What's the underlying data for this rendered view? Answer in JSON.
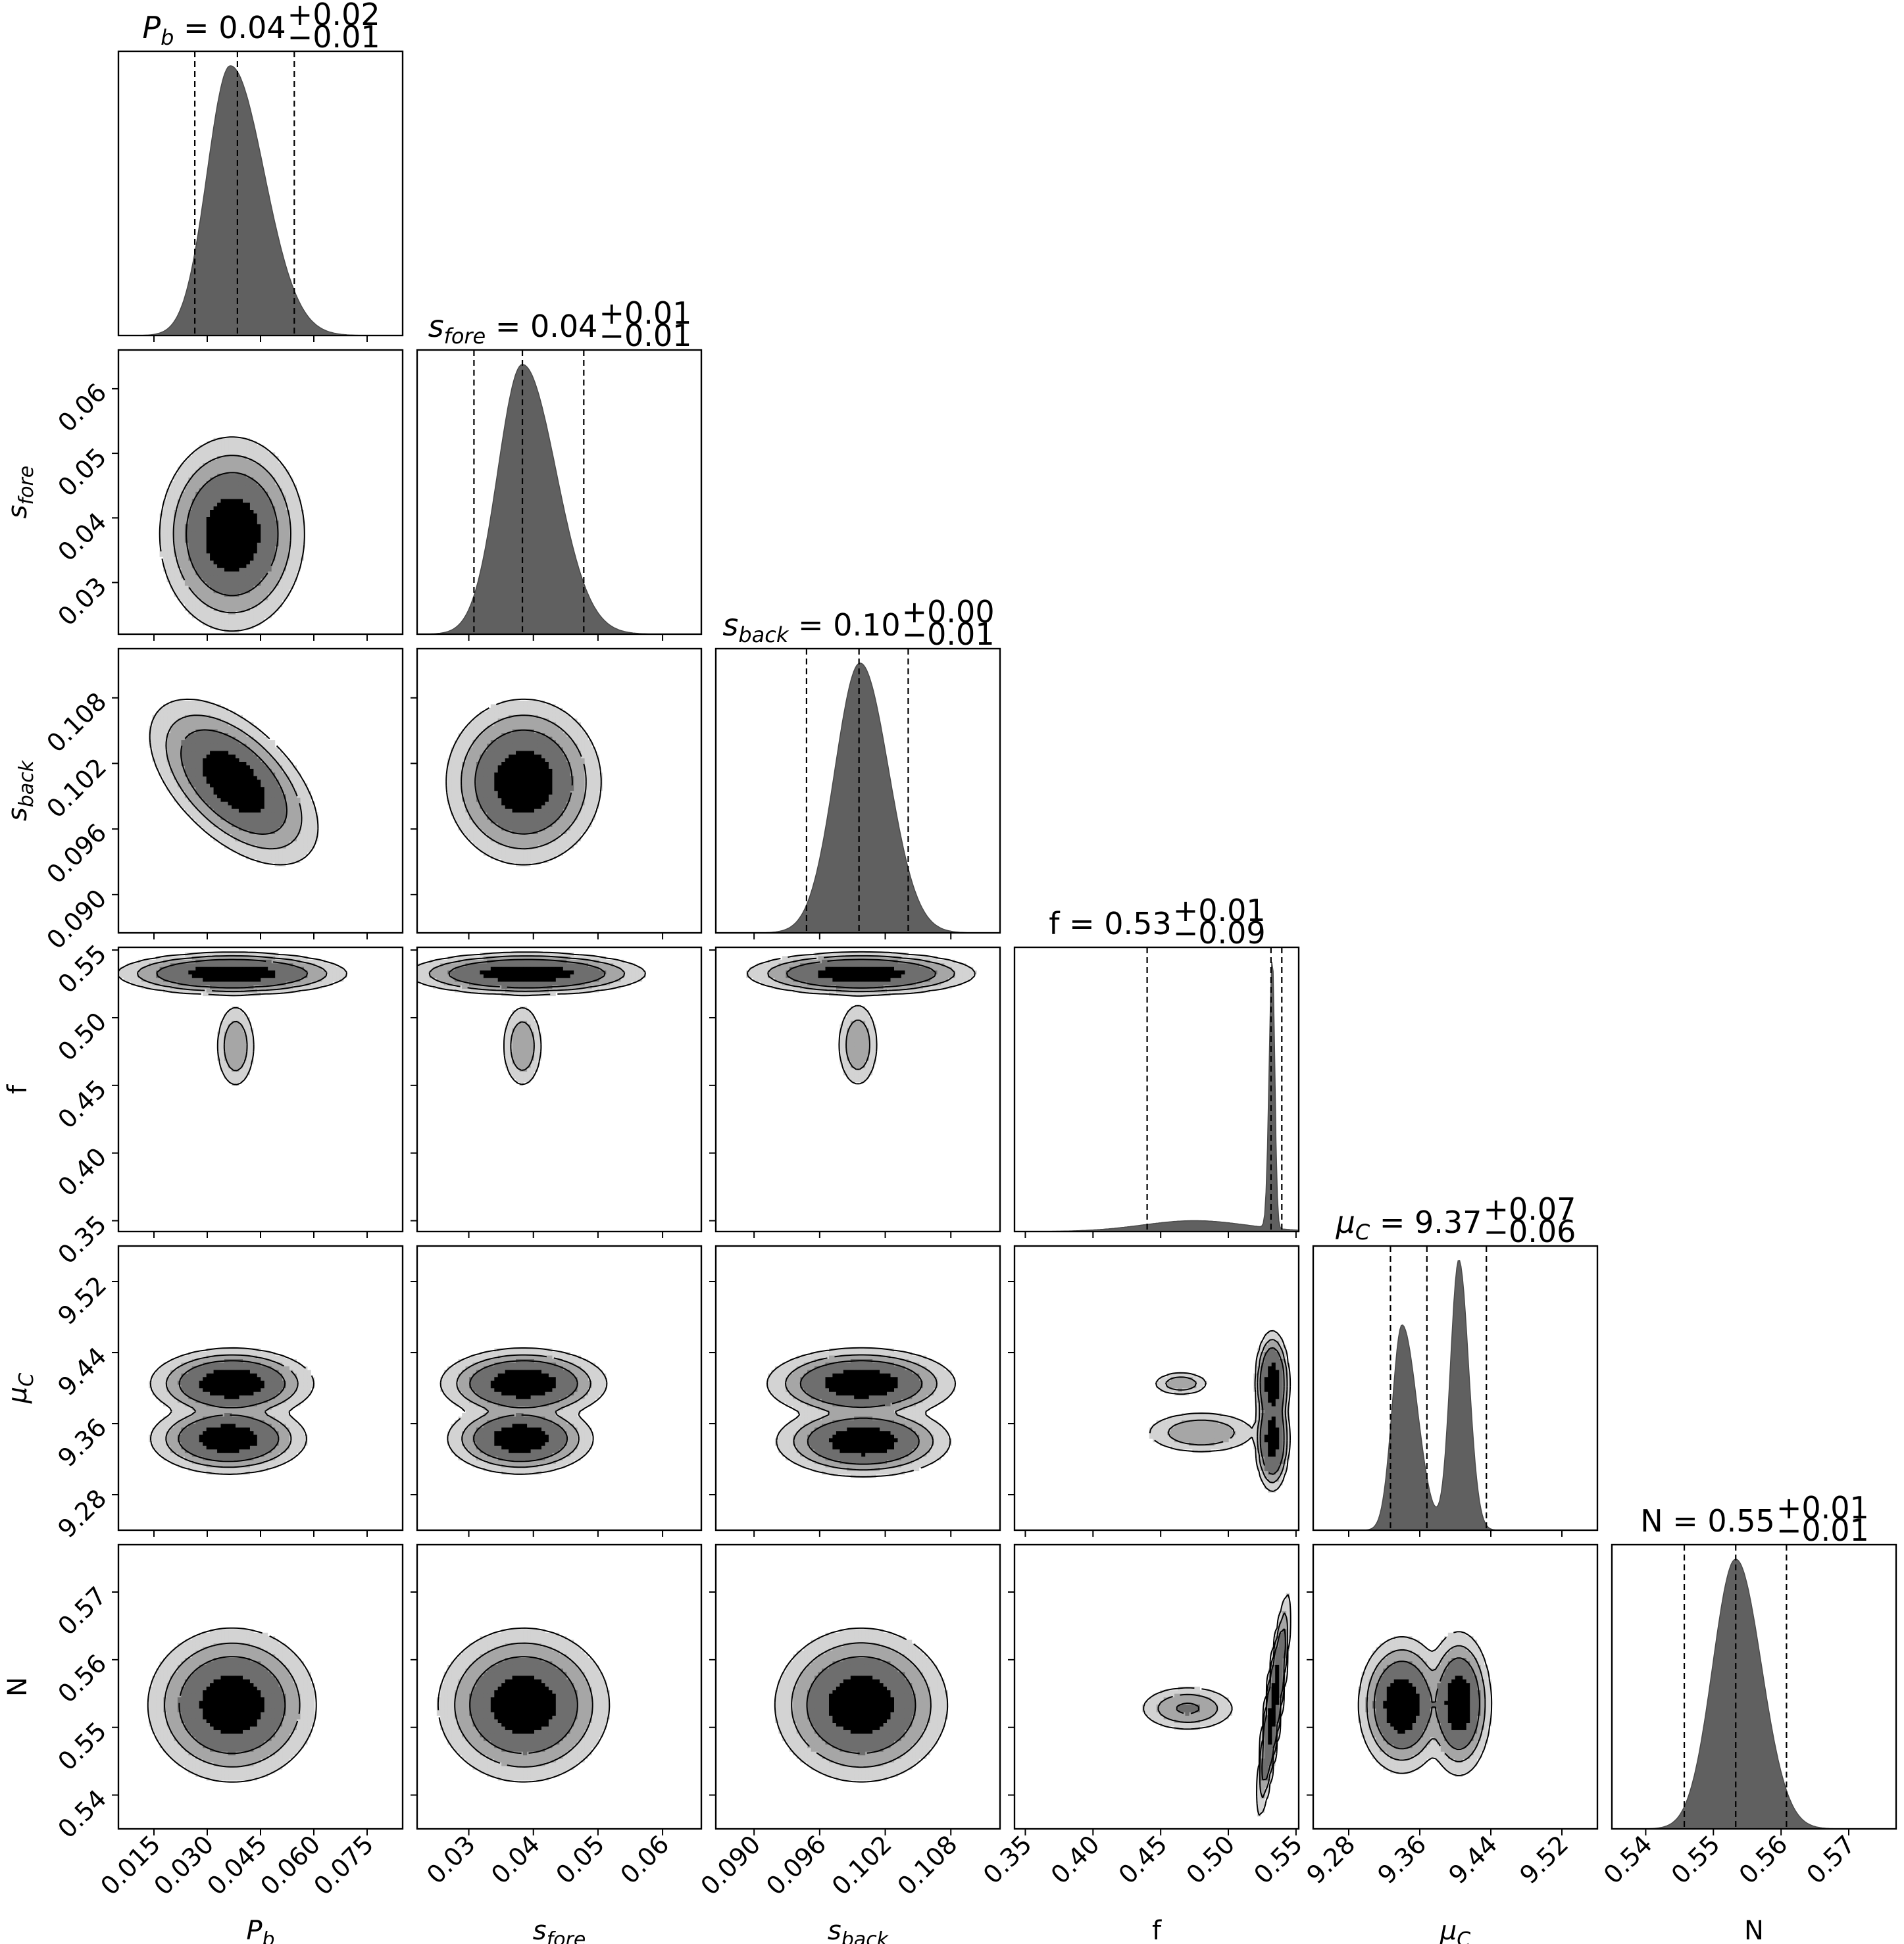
{
  "chart_data": {
    "type": "corner",
    "colors": {
      "histogram": "#606060",
      "levels": [
        "#d3d3d3",
        "#a6a6a6",
        "#6e6e6e",
        "#000000"
      ],
      "line": "#000000"
    },
    "parameters": [
      {
        "id": "Pb",
        "label_base": "P",
        "label_sub": "b",
        "title_base": "P",
        "title_sub": "b",
        "title_value": " = 0.04",
        "title_plus": "+0.02",
        "title_minus": "−0.01",
        "range": [
          0.005,
          0.085
        ],
        "ticks": [
          0.015,
          0.03,
          0.045,
          0.06,
          0.075
        ],
        "tick_labels": [
          "0.015",
          "0.030",
          "0.045",
          "0.060",
          "0.075"
        ],
        "quantiles": [
          0.0265,
          0.0385,
          0.0545
        ],
        "mode": "unimodal",
        "peak": 0.0365,
        "width_left": 0.0065,
        "width_right": 0.0095
      },
      {
        "id": "sfore",
        "label_base": "s",
        "label_sub": "fore",
        "title_base": "s",
        "title_sub": "fore",
        "title_value": " = 0.04",
        "title_plus": "+0.01",
        "title_minus": "−0.01",
        "range": [
          0.022,
          0.066
        ],
        "ticks": [
          0.03,
          0.04,
          0.05,
          0.06
        ],
        "tick_labels": [
          "0.03",
          "0.04",
          "0.05",
          "0.06"
        ],
        "quantiles": [
          0.0308,
          0.0383,
          0.0478
        ],
        "mode": "unimodal",
        "peak": 0.0383,
        "width_left": 0.0038,
        "width_right": 0.0052
      },
      {
        "id": "sback",
        "label_base": "s",
        "label_sub": "back",
        "title_base": "s",
        "title_sub": "back",
        "title_value": " = 0.10",
        "title_plus": "+0.00",
        "title_minus": "−0.01",
        "range": [
          0.0865,
          0.1125
        ],
        "ticks": [
          0.09,
          0.096,
          0.102,
          0.108
        ],
        "tick_labels": [
          "0.090",
          "0.096",
          "0.102",
          "0.108"
        ],
        "quantiles": [
          0.0948,
          0.0996,
          0.1041
        ],
        "mode": "unimodal",
        "peak": 0.0997,
        "width_left": 0.0023,
        "width_right": 0.0026
      },
      {
        "id": "f",
        "label_base": "f",
        "label_sub": "",
        "title_base": "f",
        "title_sub": "",
        "title_value": " = 0.53",
        "title_plus": "+0.01",
        "title_minus": "−0.09",
        "range": [
          0.342,
          0.552
        ],
        "ticks": [
          0.35,
          0.4,
          0.45,
          0.5,
          0.55
        ],
        "tick_labels": [
          "0.35",
          "0.40",
          "0.45",
          "0.50",
          "0.55"
        ],
        "quantiles": [
          0.44,
          0.5315,
          0.5395
        ],
        "mode": "spike",
        "peak": 0.5325
      },
      {
        "id": "muC",
        "label_base": "μ",
        "label_sub": "C",
        "title_base": "μ",
        "title_sub": "C",
        "title_value": " = 9.37",
        "title_plus": "+0.07",
        "title_minus": "−0.06",
        "range": [
          9.24,
          9.56
        ],
        "ticks": [
          9.28,
          9.36,
          9.44,
          9.52
        ],
        "tick_labels": [
          "9.28",
          "9.36",
          "9.44",
          "9.52"
        ],
        "quantiles": [
          9.327,
          9.368,
          9.435
        ],
        "mode": "bimodal",
        "peak": 9.34,
        "peak2": 9.404
      },
      {
        "id": "N",
        "label_base": "N",
        "label_sub": "",
        "title_base": "N",
        "title_sub": "",
        "title_value": " = 0.55",
        "title_plus": "+0.01",
        "title_minus": "−0.01",
        "range": [
          0.535,
          0.577
        ],
        "ticks": [
          0.54,
          0.55,
          0.56,
          0.57
        ],
        "tick_labels": [
          "0.54",
          "0.55",
          "0.56",
          "0.57"
        ],
        "quantiles": [
          0.5457,
          0.5533,
          0.5608
        ],
        "mode": "unimodal",
        "peak": 0.5533,
        "width_left": 0.0034,
        "width_right": 0.0038
      }
    ],
    "pairs": [
      {
        "x": "Pb",
        "y": "sfore",
        "blobs": [
          {
            "cx": 0.037,
            "cy": 0.0375,
            "sx": 0.0065,
            "sy": 0.0048,
            "rho": 0.0,
            "w": 1
          }
        ]
      },
      {
        "x": "Pb",
        "y": "sback",
        "blobs": [
          {
            "cx": 0.0375,
            "cy": 0.1003,
            "sx": 0.0075,
            "sy": 0.0024,
            "rho": -0.55,
            "w": 1
          }
        ]
      },
      {
        "x": "sfore",
        "y": "sback",
        "blobs": [
          {
            "cx": 0.0385,
            "cy": 0.1003,
            "sx": 0.0038,
            "sy": 0.0024,
            "rho": 0.0,
            "w": 1
          }
        ]
      },
      {
        "x": "Pb",
        "y": "f",
        "blobs": [
          {
            "cx": 0.037,
            "cy": 0.5325,
            "sx": 0.01,
            "sy": 0.0048,
            "rho": 0.0,
            "w": 1
          },
          {
            "cx": 0.038,
            "cy": 0.479,
            "sx": 0.0021,
            "sy": 0.012,
            "rho": 0.0,
            "w": 0.09
          }
        ]
      },
      {
        "x": "sfore",
        "y": "f",
        "blobs": [
          {
            "cx": 0.039,
            "cy": 0.5325,
            "sx": 0.0057,
            "sy": 0.0048,
            "rho": 0.0,
            "w": 1
          },
          {
            "cx": 0.0383,
            "cy": 0.479,
            "sx": 0.0012,
            "sy": 0.012,
            "rho": 0.0,
            "w": 0.09
          }
        ]
      },
      {
        "x": "sback",
        "y": "f",
        "blobs": [
          {
            "cx": 0.0998,
            "cy": 0.5325,
            "sx": 0.0032,
            "sy": 0.0048,
            "rho": 0.0,
            "w": 1
          },
          {
            "cx": 0.0995,
            "cy": 0.48,
            "sx": 0.0007,
            "sy": 0.012,
            "rho": 0.0,
            "w": 0.09
          }
        ]
      },
      {
        "x": "Pb",
        "y": "muC",
        "blobs": [
          {
            "cx": 0.037,
            "cy": 9.405,
            "sx": 0.0075,
            "sy": 0.013,
            "rho": 0.0,
            "w": 1
          },
          {
            "cx": 0.036,
            "cy": 9.343,
            "sx": 0.0072,
            "sy": 0.013,
            "rho": 0.0,
            "w": 0.95
          }
        ]
      },
      {
        "x": "sfore",
        "y": "muC",
        "blobs": [
          {
            "cx": 0.0385,
            "cy": 9.405,
            "sx": 0.0042,
            "sy": 0.013,
            "rho": 0.0,
            "w": 1
          },
          {
            "cx": 0.038,
            "cy": 9.343,
            "sx": 0.0037,
            "sy": 0.013,
            "rho": 0.0,
            "w": 0.95
          }
        ]
      },
      {
        "x": "sback",
        "y": "muC",
        "blobs": [
          {
            "cx": 0.0998,
            "cy": 9.405,
            "sx": 0.0028,
            "sy": 0.013,
            "rho": 0.0,
            "w": 1
          },
          {
            "cx": 0.1,
            "cy": 9.34,
            "sx": 0.0026,
            "sy": 0.013,
            "rho": 0.0,
            "w": 0.95
          }
        ]
      },
      {
        "x": "f",
        "y": "muC",
        "blobs": [
          {
            "cx": 0.5325,
            "cy": 9.405,
            "sx": 0.0038,
            "sy": 0.018,
            "rho": 0.0,
            "w": 1
          },
          {
            "cx": 0.5325,
            "cy": 9.343,
            "sx": 0.0038,
            "sy": 0.018,
            "rho": 0.0,
            "w": 0.95
          },
          {
            "cx": 0.48,
            "cy": 9.35,
            "sx": 0.016,
            "sy": 0.009,
            "rho": 0.0,
            "w": 0.07
          },
          {
            "cx": 0.465,
            "cy": 9.405,
            "sx": 0.008,
            "sy": 0.005,
            "rho": 0.0,
            "w": 0.06
          }
        ]
      },
      {
        "x": "Pb",
        "y": "N",
        "blobs": [
          {
            "cx": 0.037,
            "cy": 0.5533,
            "sx": 0.0075,
            "sy": 0.0036,
            "rho": 0.0,
            "w": 1
          }
        ]
      },
      {
        "x": "sfore",
        "y": "N",
        "blobs": [
          {
            "cx": 0.0385,
            "cy": 0.5533,
            "sx": 0.0042,
            "sy": 0.0036,
            "rho": 0.0,
            "w": 1
          }
        ]
      },
      {
        "x": "sback",
        "y": "N",
        "blobs": [
          {
            "cx": 0.0998,
            "cy": 0.5533,
            "sx": 0.0025,
            "sy": 0.0036,
            "rho": 0.0,
            "w": 1
          }
        ]
      },
      {
        "x": "f",
        "y": "N",
        "blobs": [
          {
            "cx": 0.5335,
            "cy": 0.5533,
            "sx": 0.0035,
            "sy": 0.0048,
            "rho": 0.85,
            "w": 1
          },
          {
            "cx": 0.47,
            "cy": 0.5528,
            "sx": 0.013,
            "sy": 0.0012,
            "rho": 0.0,
            "w": 0.07
          }
        ]
      },
      {
        "x": "muC",
        "y": "N",
        "blobs": [
          {
            "cx": 9.34,
            "cy": 0.5533,
            "sx": 0.016,
            "sy": 0.0033,
            "rho": 0.0,
            "w": 1
          },
          {
            "cx": 9.404,
            "cy": 0.5535,
            "sx": 0.012,
            "sy": 0.0035,
            "rho": 0.0,
            "w": 0.95
          }
        ]
      }
    ]
  }
}
